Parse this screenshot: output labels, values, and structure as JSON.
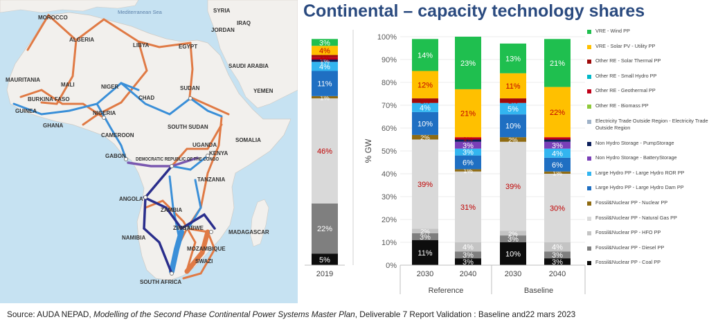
{
  "title": "Continental – capacity technology shares",
  "source": {
    "prefix": "Source: AUDA NEPAD, ",
    "italic": "Modelling of the Second Phase Continental Power Systems Master Plan",
    "suffix": ", Deliverable 7 Report Validation : Baseline and22 mars 2023"
  },
  "map": {
    "labels": [
      "Mediterranean Sea",
      "MOROCCO",
      "ALGERIA",
      "LIBYA",
      "EGYPT",
      "SYRIA",
      "IRAQ",
      "JORDAN",
      "SAUDI ARABIA",
      "YEMEN",
      "MAURITANIA",
      "MALI",
      "NIGER",
      "CHAD",
      "SUDAN",
      "BURKINA FASO",
      "GUINEA",
      "GHANA",
      "NIGERIA",
      "CAMEROON",
      "SOUTH SUDAN",
      "SOMALIA",
      "GABON",
      "DEMOCRATIC REPUBLIC OF THE CONGO",
      "UGANDA",
      "KENYA",
      "TANZANIA",
      "ANGOLA",
      "ZAMBIA",
      "ZIMBABWE",
      "NAMIBIA",
      "MADAGASCAR",
      "MOZAMBIQUE",
      "SWAZI",
      "SOUTH AFRICA"
    ],
    "colors": {
      "ocean": "#c6e2f2",
      "land": "#f2f0ed",
      "line_orange": "#e07a45",
      "line_blue": "#3a8fd8",
      "line_navy": "#2a2e8c",
      "line_purple": "#7a58b0"
    }
  },
  "chart_data": {
    "type": "bar",
    "stacked": true,
    "percent": true,
    "ylabel": "% GW",
    "ylim": [
      0,
      100
    ],
    "yticks": [
      "0%",
      "10%",
      "20%",
      "30%",
      "40%",
      "50%",
      "60%",
      "70%",
      "80%",
      "90%",
      "100%"
    ],
    "groups": [
      {
        "name": "",
        "categories": [
          "2019"
        ]
      },
      {
        "name": "Reference",
        "categories": [
          "2030",
          "2040"
        ]
      },
      {
        "name": "Baseline",
        "categories": [
          "2030",
          "2040"
        ]
      }
    ],
    "categories": [
      "2019",
      "2030",
      "2040",
      "2030",
      "2040"
    ],
    "series": [
      {
        "name": "Fossil&Nuclear PP - Coal PP",
        "color": "#0d0d0d",
        "label_color": "#ffffff",
        "values": [
          5,
          11,
          3,
          10,
          3
        ],
        "labels": [
          "5%",
          "11%",
          "3%",
          "10%",
          "3%"
        ]
      },
      {
        "name": "Fossil&Nuclear PP - Diesel PP",
        "color": "#7f7f7f",
        "label_color": "#ffffff",
        "values": [
          22,
          3,
          3,
          3,
          3
        ],
        "labels": [
          "22%",
          "3%",
          "3%",
          "3%",
          "3%"
        ]
      },
      {
        "name": "Fossil&Nuclear PP - HFO PP",
        "color": "#c4c4c4",
        "label_color": "#ffffff",
        "values": [
          0,
          2,
          4,
          2,
          4
        ],
        "labels": [
          "",
          "2%",
          "4%",
          "2%",
          "4%"
        ]
      },
      {
        "name": "Fossil&Nuclear PP - Natural Gas PP",
        "color": "#d9d9d9",
        "label_color": "#c00000",
        "values": [
          46,
          39,
          31,
          39,
          30
        ],
        "labels": [
          "46%",
          "39%",
          "31%",
          "39%",
          "30%"
        ]
      },
      {
        "name": "Fossil&Nuclear PP - Nuclear PP",
        "color": "#8f6b12",
        "label_color": "#ffffff",
        "values": [
          1,
          2,
          1,
          2,
          1
        ],
        "labels": [
          "1%",
          "2%",
          "1%",
          "2%",
          "1%"
        ]
      },
      {
        "name": "Large Hydro PP - Large Hydro Dam PP",
        "color": "#1f6fc2",
        "label_color": "#ffffff",
        "values": [
          11,
          10,
          6,
          10,
          6
        ],
        "labels": [
          "11%",
          "10%",
          "6%",
          "10%",
          "6%"
        ]
      },
      {
        "name": "Large Hydro PP - Large Hydro ROR PP",
        "color": "#33b5f0",
        "label_color": "#ffffff",
        "values": [
          4,
          4,
          3,
          5,
          4
        ],
        "labels": [
          "4%",
          "4%",
          "3%",
          "5%",
          "4%"
        ]
      },
      {
        "name": "Non Hydro Storage - BatteryStorage",
        "color": "#7a3fb8",
        "label_color": "#ffffff",
        "values": [
          0,
          0,
          3,
          0,
          3
        ],
        "labels": [
          "",
          "",
          "3%",
          "",
          "3%"
        ]
      },
      {
        "name": "Non Hydro Storage - PumpStorage",
        "color": "#0b1f5c",
        "label_color": "#ffffff",
        "values": [
          1,
          0,
          1,
          0,
          1
        ],
        "labels": [
          "1%",
          "",
          "",
          "",
          ""
        ]
      },
      {
        "name": "Electricity Trade Outside Region - Electricity Trade Outside Region",
        "color": "#9fb2c8",
        "label_color": "#ffffff",
        "values": [
          0,
          0,
          0,
          0,
          0
        ],
        "labels": [
          "",
          "",
          "",
          "",
          ""
        ]
      },
      {
        "name": "Other RE - Biomass PP",
        "color": "#8fc93a",
        "label_color": "#ffffff",
        "values": [
          0,
          0,
          0,
          0,
          0
        ],
        "labels": [
          "",
          "",
          "",
          "",
          ""
        ]
      },
      {
        "name": "Other RE - Geothermal PP",
        "color": "#c00018",
        "label_color": "#c00000",
        "values": [
          1,
          0,
          1,
          0,
          1
        ],
        "labels": [
          "1%",
          "",
          "1%",
          "",
          ""
        ]
      },
      {
        "name": "Other RE - Small Hydro PP",
        "color": "#00b8c8",
        "label_color": "#ffffff",
        "values": [
          0,
          0,
          0,
          0,
          0
        ],
        "labels": [
          "",
          "",
          "",
          "",
          ""
        ]
      },
      {
        "name": "Other RE - Solar Thermal PP",
        "color": "#9e0a0a",
        "label_color": "#c00000",
        "values": [
          1,
          2,
          0,
          2,
          0
        ],
        "labels": [
          "1%",
          "2%",
          "",
          "2%",
          ""
        ]
      },
      {
        "name": "VRE - Solar PV - Utility PP",
        "color": "#ffc000",
        "label_color": "#c00000",
        "values": [
          4,
          12,
          21,
          11,
          22
        ],
        "labels": [
          "4%",
          "12%",
          "21%",
          "11%",
          "22%"
        ]
      },
      {
        "name": "VRE - Wind PP",
        "color": "#1fbf4f",
        "label_color": "#ffffff",
        "values": [
          3,
          14,
          23,
          13,
          21
        ],
        "labels": [
          "3%",
          "14%",
          "23%",
          "13%",
          "21%"
        ]
      }
    ]
  }
}
